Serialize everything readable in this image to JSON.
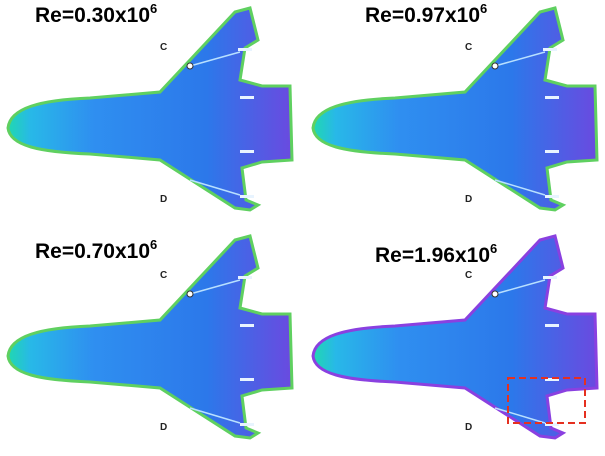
{
  "panels": [
    {
      "title": "Re=0.30x10",
      "exponent": "6",
      "label_top": "C",
      "label_bottom": "D"
    },
    {
      "title": "Re=0.97x10",
      "exponent": "6",
      "label_top": "C",
      "label_bottom": "D"
    },
    {
      "title": "Re=0.70x10",
      "exponent": "6",
      "label_top": "C",
      "label_bottom": "D"
    },
    {
      "title": "Re=1.96x10",
      "exponent": "6",
      "label_top": "C",
      "label_bottom": "D"
    }
  ]
}
